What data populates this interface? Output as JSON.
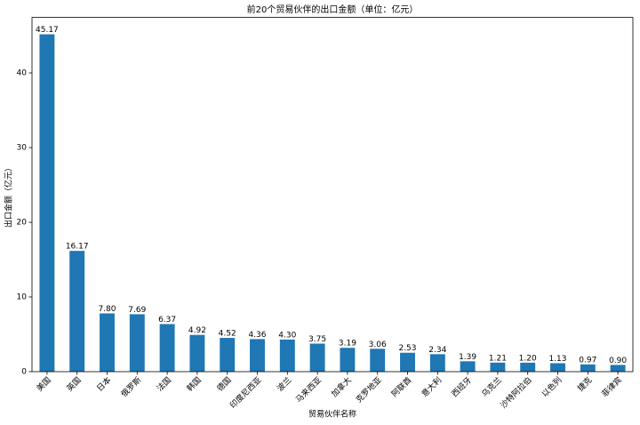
{
  "chart_data": {
    "type": "bar",
    "title": "前20个贸易伙伴的出口金额（单位：亿元）",
    "x_label": "贸易伙伴名称",
    "y_label": "出口金额（亿元）",
    "categories": [
      "美国",
      "英国",
      "日本",
      "俄罗斯",
      "法国",
      "韩国",
      "德国",
      "印度尼西亚",
      "波兰",
      "马来西亚",
      "加拿大",
      "克罗地亚",
      "阿联酋",
      "意大利",
      "西班牙",
      "乌克兰",
      "沙特阿拉伯",
      "以色列",
      "捷克",
      "菲律宾"
    ],
    "values": [
      45.17,
      16.17,
      7.8,
      7.69,
      6.37,
      4.92,
      4.52,
      4.36,
      4.3,
      3.75,
      3.19,
      3.06,
      2.53,
      2.34,
      1.39,
      1.21,
      1.2,
      1.13,
      0.97,
      0.9
    ],
    "value_labels": [
      "45.17",
      "16.17",
      "7.80",
      "7.69",
      "6.37",
      "4.92",
      "4.52",
      "4.36",
      "4.30",
      "3.75",
      "3.19",
      "3.06",
      "2.53",
      "2.34",
      "1.39",
      "1.21",
      "1.20",
      "1.13",
      "0.97",
      "0.90"
    ],
    "color": "#1f77b4",
    "ylim": [
      0,
      47.43
    ],
    "yticks": [
      0,
      10,
      20,
      30,
      40
    ],
    "grid": false
  }
}
